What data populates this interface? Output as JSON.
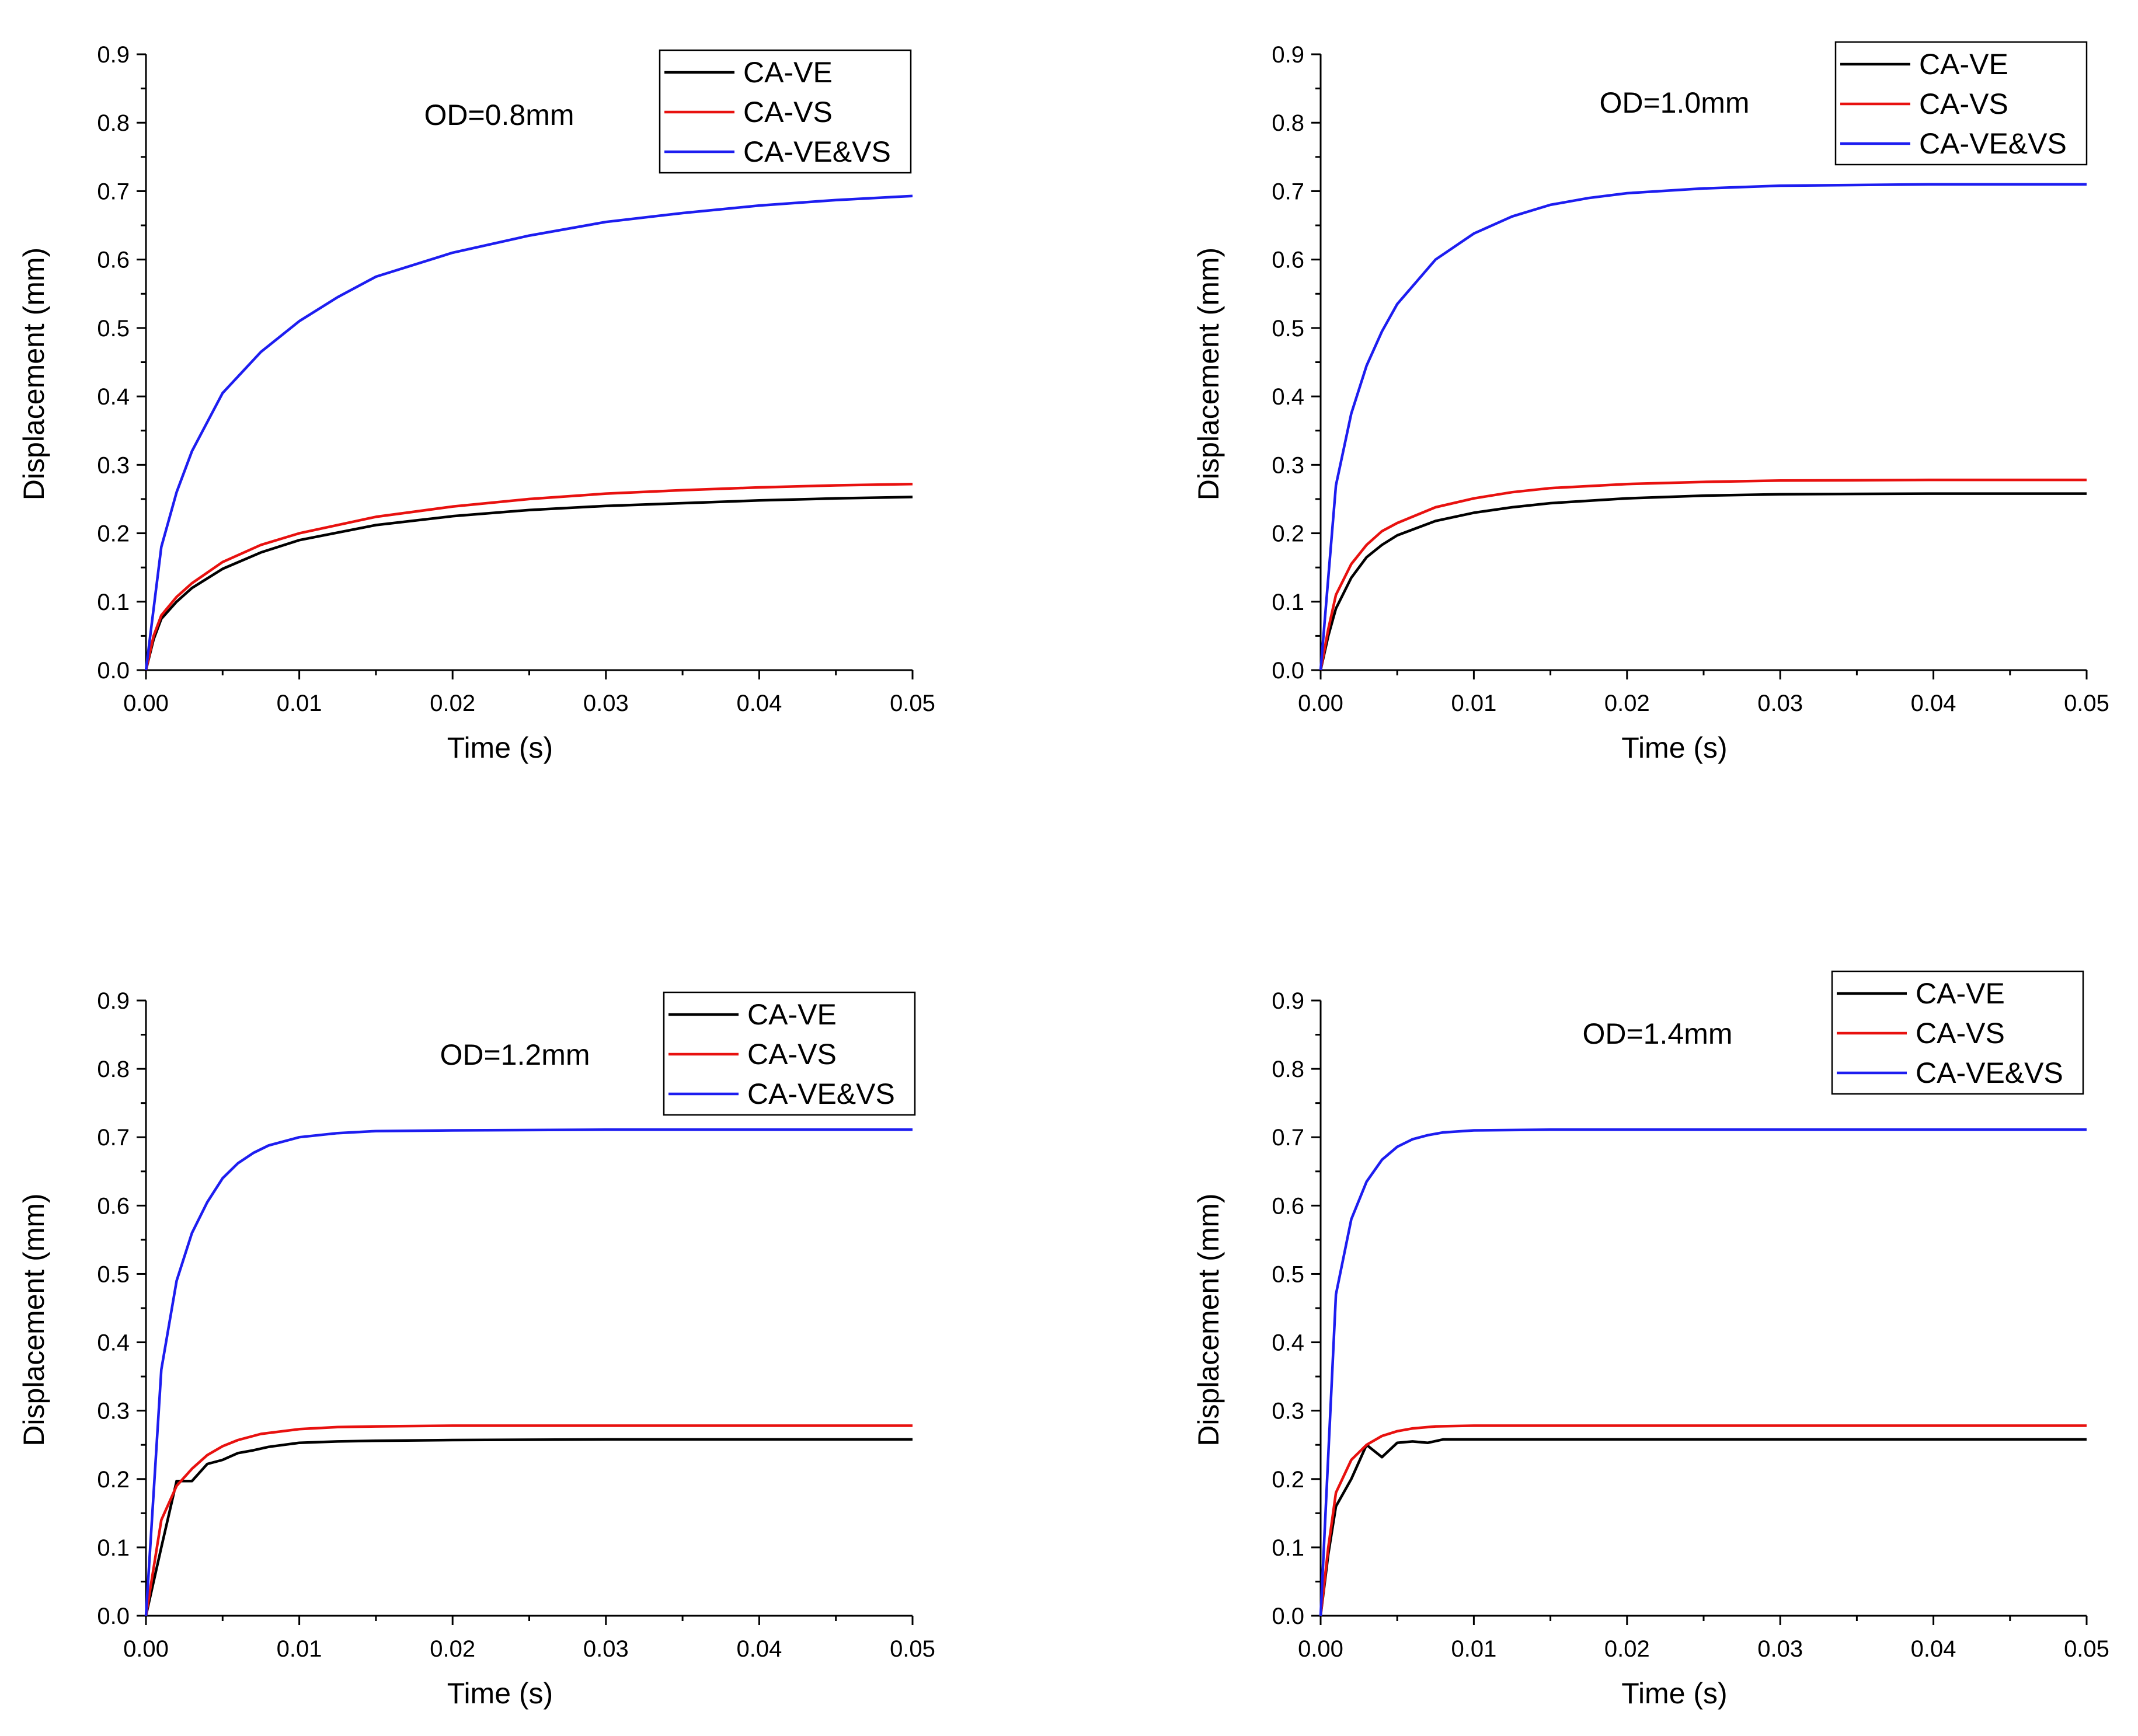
{
  "figure": {
    "legend_entries": [
      "CA-VE",
      "CA-VS",
      "CA-VE&VS"
    ],
    "series_colors": {
      "CA-VE": "#000000",
      "CA-VS": "#e8110f",
      "CA-VE&VS": "#1d1df0"
    }
  },
  "chart_data": [
    {
      "type": "line",
      "title": "",
      "annotation": "OD=0.8mm",
      "xlabel": "Time (s)",
      "ylabel": "Displacement (mm)",
      "xlim": [
        0,
        0.05
      ],
      "ylim": [
        0,
        0.9
      ],
      "xticks": [
        "0.00",
        "0.01",
        "0.02",
        "0.03",
        "0.04",
        "0.05"
      ],
      "yticks": [
        "0.0",
        "0.1",
        "0.2",
        "0.3",
        "0.4",
        "0.5",
        "0.6",
        "0.7",
        "0.8",
        "0.9"
      ],
      "legend": "top-right",
      "grid": false,
      "series": [
        {
          "name": "CA-VE",
          "x": [
            0,
            0.0005,
            0.001,
            0.002,
            0.003,
            0.005,
            0.0075,
            0.01,
            0.015,
            0.02,
            0.025,
            0.03,
            0.035,
            0.04,
            0.045,
            0.05
          ],
          "y": [
            0,
            0.045,
            0.075,
            0.1,
            0.12,
            0.148,
            0.172,
            0.19,
            0.212,
            0.225,
            0.234,
            0.24,
            0.244,
            0.248,
            0.251,
            0.253
          ]
        },
        {
          "name": "CA-VS",
          "x": [
            0,
            0.0005,
            0.001,
            0.002,
            0.003,
            0.005,
            0.0075,
            0.01,
            0.015,
            0.02,
            0.025,
            0.03,
            0.035,
            0.04,
            0.045,
            0.05
          ],
          "y": [
            0,
            0.05,
            0.08,
            0.107,
            0.127,
            0.158,
            0.183,
            0.2,
            0.224,
            0.239,
            0.25,
            0.258,
            0.263,
            0.267,
            0.27,
            0.272
          ]
        },
        {
          "name": "CA-VE&VS",
          "x": [
            0,
            0.001,
            0.002,
            0.003,
            0.005,
            0.0075,
            0.01,
            0.0125,
            0.015,
            0.02,
            0.025,
            0.03,
            0.035,
            0.04,
            0.045,
            0.05
          ],
          "y": [
            0,
            0.18,
            0.26,
            0.32,
            0.405,
            0.465,
            0.51,
            0.545,
            0.575,
            0.61,
            0.635,
            0.655,
            0.668,
            0.679,
            0.687,
            0.693
          ]
        }
      ]
    },
    {
      "type": "line",
      "title": "",
      "annotation": "OD=1.0mm",
      "xlabel": "Time (s)",
      "ylabel": "Displacement (mm)",
      "xlim": [
        0,
        0.05
      ],
      "ylim": [
        0,
        0.9
      ],
      "xticks": [
        "0.00",
        "0.01",
        "0.02",
        "0.03",
        "0.04",
        "0.05"
      ],
      "yticks": [
        "0.0",
        "0.1",
        "0.2",
        "0.3",
        "0.4",
        "0.5",
        "0.6",
        "0.7",
        "0.8",
        "0.9"
      ],
      "legend": "top-right",
      "grid": false,
      "series": [
        {
          "name": "CA-VE",
          "x": [
            0,
            0.0005,
            0.001,
            0.002,
            0.003,
            0.004,
            0.005,
            0.0075,
            0.01,
            0.0125,
            0.015,
            0.02,
            0.025,
            0.03,
            0.04,
            0.05
          ],
          "y": [
            0,
            0.05,
            0.09,
            0.135,
            0.165,
            0.183,
            0.197,
            0.218,
            0.23,
            0.238,
            0.244,
            0.251,
            0.255,
            0.257,
            0.258,
            0.258
          ]
        },
        {
          "name": "CA-VS",
          "x": [
            0,
            0.0005,
            0.001,
            0.002,
            0.003,
            0.004,
            0.005,
            0.0075,
            0.01,
            0.0125,
            0.015,
            0.02,
            0.025,
            0.03,
            0.04,
            0.05
          ],
          "y": [
            0,
            0.06,
            0.11,
            0.155,
            0.183,
            0.203,
            0.215,
            0.238,
            0.251,
            0.26,
            0.266,
            0.272,
            0.275,
            0.277,
            0.278,
            0.278
          ]
        },
        {
          "name": "CA-VE&VS",
          "x": [
            0,
            0.001,
            0.002,
            0.003,
            0.004,
            0.005,
            0.0075,
            0.01,
            0.0125,
            0.015,
            0.0175,
            0.02,
            0.025,
            0.03,
            0.04,
            0.05
          ],
          "y": [
            0,
            0.27,
            0.375,
            0.445,
            0.495,
            0.535,
            0.6,
            0.638,
            0.663,
            0.68,
            0.69,
            0.697,
            0.704,
            0.708,
            0.71,
            0.71
          ]
        }
      ]
    },
    {
      "type": "line",
      "title": "",
      "annotation": "OD=1.2mm",
      "xlabel": "Time (s)",
      "ylabel": "Displacement (mm)",
      "xlim": [
        0,
        0.05
      ],
      "ylim": [
        0,
        0.9
      ],
      "xticks": [
        "0.00",
        "0.01",
        "0.02",
        "0.03",
        "0.04",
        "0.05"
      ],
      "yticks": [
        "0.0",
        "0.1",
        "0.2",
        "0.3",
        "0.4",
        "0.5",
        "0.6",
        "0.7",
        "0.8",
        "0.9"
      ],
      "legend": "top-right",
      "grid": false,
      "series": [
        {
          "name": "CA-VE",
          "x": [
            0,
            0.001,
            0.002,
            0.003,
            0.004,
            0.005,
            0.006,
            0.007,
            0.008,
            0.009,
            0.01,
            0.0125,
            0.015,
            0.02,
            0.03,
            0.05
          ],
          "y": [
            0,
            0.1,
            0.197,
            0.197,
            0.222,
            0.228,
            0.238,
            0.242,
            0.247,
            0.25,
            0.253,
            0.255,
            0.256,
            0.257,
            0.258,
            0.258
          ]
        },
        {
          "name": "CA-VS",
          "x": [
            0,
            0.001,
            0.002,
            0.003,
            0.004,
            0.005,
            0.006,
            0.0075,
            0.01,
            0.0125,
            0.015,
            0.02,
            0.03,
            0.05
          ],
          "y": [
            0,
            0.14,
            0.19,
            0.215,
            0.235,
            0.248,
            0.257,
            0.266,
            0.273,
            0.276,
            0.277,
            0.278,
            0.278,
            0.278
          ]
        },
        {
          "name": "CA-VE&VS",
          "x": [
            0,
            0.001,
            0.002,
            0.003,
            0.004,
            0.005,
            0.006,
            0.007,
            0.008,
            0.01,
            0.0125,
            0.015,
            0.02,
            0.03,
            0.05
          ],
          "y": [
            0,
            0.36,
            0.49,
            0.56,
            0.605,
            0.64,
            0.662,
            0.677,
            0.688,
            0.7,
            0.706,
            0.709,
            0.71,
            0.711,
            0.711
          ]
        }
      ]
    },
    {
      "type": "line",
      "title": "",
      "annotation": "OD=1.4mm",
      "xlabel": "Time (s)",
      "ylabel": "Displacement (mm)",
      "xlim": [
        0,
        0.05
      ],
      "ylim": [
        0,
        0.9
      ],
      "xticks": [
        "0.00",
        "0.01",
        "0.02",
        "0.03",
        "0.04",
        "0.05"
      ],
      "yticks": [
        "0.0",
        "0.1",
        "0.2",
        "0.3",
        "0.4",
        "0.5",
        "0.6",
        "0.7",
        "0.8",
        "0.9"
      ],
      "legend": "top-right",
      "grid": false,
      "series": [
        {
          "name": "CA-VE",
          "x": [
            0,
            0.0005,
            0.001,
            0.002,
            0.003,
            0.004,
            0.005,
            0.006,
            0.007,
            0.008,
            0.01,
            0.05
          ],
          "y": [
            0,
            0.09,
            0.16,
            0.2,
            0.25,
            0.232,
            0.253,
            0.255,
            0.253,
            0.258,
            0.258,
            0.258
          ]
        },
        {
          "name": "CA-VS",
          "x": [
            0,
            0.0005,
            0.001,
            0.002,
            0.003,
            0.004,
            0.005,
            0.006,
            0.0075,
            0.01,
            0.05
          ],
          "y": [
            0,
            0.1,
            0.18,
            0.228,
            0.25,
            0.263,
            0.27,
            0.274,
            0.277,
            0.278,
            0.278
          ]
        },
        {
          "name": "CA-VE&VS",
          "x": [
            0,
            0.001,
            0.002,
            0.003,
            0.004,
            0.005,
            0.006,
            0.007,
            0.008,
            0.01,
            0.015,
            0.05
          ],
          "y": [
            0,
            0.47,
            0.58,
            0.635,
            0.667,
            0.686,
            0.697,
            0.703,
            0.707,
            0.71,
            0.711,
            0.711
          ]
        }
      ]
    }
  ]
}
